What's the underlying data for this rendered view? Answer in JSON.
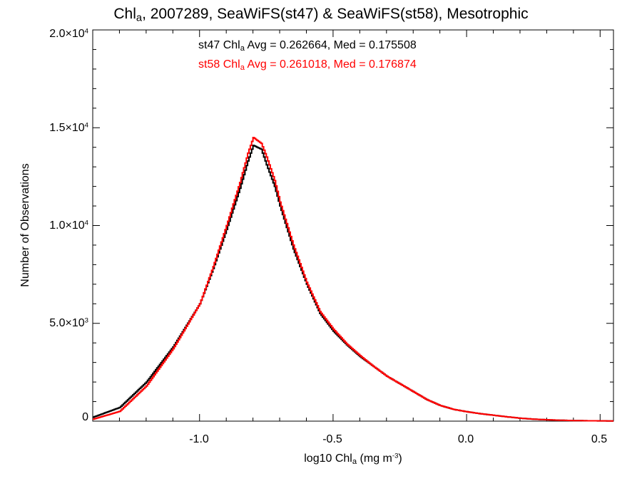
{
  "chart_data": {
    "type": "line",
    "title_parts": [
      "Chl",
      "a",
      ", 2007289, SeaWiFS(st47) & SeaWiFS(st58), Mesotrophic"
    ],
    "xlabel_parts": [
      "log10 Chl",
      "a",
      " (mg m",
      "-3",
      ")"
    ],
    "ylabel": "Number of Observations",
    "xlim": [
      -1.4,
      0.55
    ],
    "ylim": [
      0,
      20000
    ],
    "x_ticks": [
      "-1.0",
      "-0.5",
      "0.0",
      "0.5"
    ],
    "x_tick_values": [
      -1.0,
      -0.5,
      0.0,
      0.5
    ],
    "y_ticks": [
      {
        "value": 0,
        "mant": "0",
        "exp": ""
      },
      {
        "value": 5000,
        "mant": "5.0×10",
        "exp": "3"
      },
      {
        "value": 10000,
        "mant": "1.0×10",
        "exp": "4"
      },
      {
        "value": 15000,
        "mant": "1.5×10",
        "exp": "4"
      },
      {
        "value": 20000,
        "mant": "2.0×10",
        "exp": "4"
      }
    ],
    "annotations": [
      {
        "series": "st47",
        "text_parts": [
          "st47 Chl",
          "a",
          " Avg = 0.262664, Med = 0.175508"
        ]
      },
      {
        "series": "st58",
        "text_parts": [
          "st58 Chl",
          "a",
          " Avg = 0.261018, Med = 0.176874"
        ]
      }
    ],
    "series": [
      {
        "color": "#000000",
        "x": [
          -1.4,
          -1.3,
          -1.2,
          -1.1,
          -1.0,
          -0.95,
          -0.9,
          -0.85,
          -0.82,
          -0.8,
          -0.77,
          -0.75,
          -0.72,
          -0.7,
          -0.65,
          -0.6,
          -0.55,
          -0.5,
          -0.45,
          -0.4,
          -0.35,
          -0.3,
          -0.25,
          -0.2,
          -0.15,
          -0.1,
          -0.05,
          0.0,
          0.05,
          0.1,
          0.15,
          0.2,
          0.25,
          0.3,
          0.35,
          0.4,
          0.45,
          0.5,
          0.55
        ],
        "values": [
          200,
          700,
          2000,
          3800,
          6000,
          7800,
          9800,
          11900,
          13300,
          14100,
          13900,
          13100,
          12000,
          11000,
          8800,
          7000,
          5500,
          4600,
          3900,
          3300,
          2800,
          2300,
          1900,
          1500,
          1100,
          800,
          600,
          480,
          380,
          300,
          220,
          150,
          100,
          70,
          45,
          30,
          20,
          15,
          10
        ]
      },
      {
        "color": "#ff0000",
        "x": [
          -1.4,
          -1.3,
          -1.2,
          -1.1,
          -1.0,
          -0.95,
          -0.9,
          -0.85,
          -0.82,
          -0.8,
          -0.77,
          -0.75,
          -0.72,
          -0.7,
          -0.65,
          -0.6,
          -0.55,
          -0.5,
          -0.45,
          -0.4,
          -0.35,
          -0.3,
          -0.25,
          -0.2,
          -0.15,
          -0.1,
          -0.05,
          0.0,
          0.05,
          0.1,
          0.15,
          0.2,
          0.25,
          0.3,
          0.35,
          0.4,
          0.45,
          0.5,
          0.55
        ],
        "values": [
          100,
          500,
          1800,
          3700,
          6000,
          7900,
          10000,
          12200,
          13700,
          14500,
          14200,
          13500,
          12300,
          11200,
          9000,
          7100,
          5600,
          4700,
          3950,
          3350,
          2800,
          2300,
          1900,
          1500,
          1100,
          800,
          600,
          480,
          380,
          300,
          220,
          150,
          100,
          70,
          45,
          30,
          20,
          15,
          10
        ]
      }
    ]
  }
}
